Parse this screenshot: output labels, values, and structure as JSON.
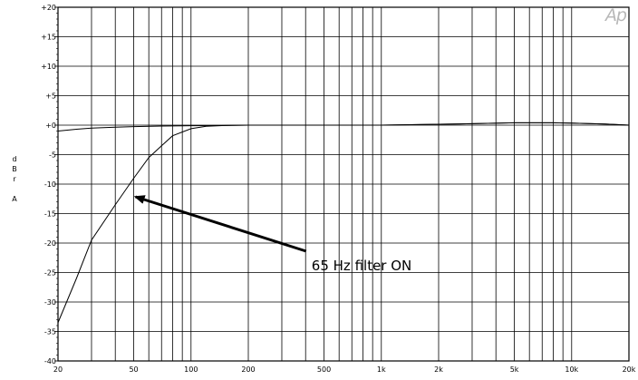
{
  "chart_data": {
    "type": "line",
    "title": "",
    "xlabel": "",
    "ylabel": "dBr A",
    "x_scale": "log",
    "xlim": [
      20,
      20000
    ],
    "ylim": [
      -40,
      20
    ],
    "grid": true,
    "x_ticks": [
      {
        "value": 20,
        "label": "20"
      },
      {
        "value": 50,
        "label": "50"
      },
      {
        "value": 100,
        "label": "100"
      },
      {
        "value": 200,
        "label": "200"
      },
      {
        "value": 500,
        "label": "500"
      },
      {
        "value": 1000,
        "label": "1k"
      },
      {
        "value": 2000,
        "label": "2k"
      },
      {
        "value": 5000,
        "label": "5k"
      },
      {
        "value": 10000,
        "label": "10k"
      },
      {
        "value": 20000,
        "label": "20k"
      }
    ],
    "x_grid": [
      20,
      30,
      40,
      50,
      60,
      70,
      80,
      90,
      100,
      200,
      300,
      400,
      500,
      600,
      700,
      800,
      900,
      1000,
      2000,
      3000,
      4000,
      5000,
      6000,
      7000,
      8000,
      9000,
      10000,
      20000
    ],
    "y_ticks": [
      {
        "value": 20,
        "label": "+20"
      },
      {
        "value": 15,
        "label": "+15"
      },
      {
        "value": 10,
        "label": "+10"
      },
      {
        "value": 5,
        "label": "+5"
      },
      {
        "value": 0,
        "label": "+0"
      },
      {
        "value": -5,
        "label": "-5"
      },
      {
        "value": -10,
        "label": "-10"
      },
      {
        "value": -15,
        "label": "-15"
      },
      {
        "value": -20,
        "label": "-20"
      },
      {
        "value": -25,
        "label": "-25"
      },
      {
        "value": -30,
        "label": "-30"
      },
      {
        "value": -35,
        "label": "-35"
      },
      {
        "value": -40,
        "label": "-40"
      }
    ],
    "series": [
      {
        "points": [
          [
            20,
            -1.0
          ],
          [
            25,
            -0.7
          ],
          [
            30,
            -0.5
          ],
          [
            40,
            -0.35
          ],
          [
            50,
            -0.25
          ],
          [
            70,
            -0.15
          ],
          [
            100,
            -0.1
          ],
          [
            150,
            -0.05
          ],
          [
            200,
            0
          ],
          [
            500,
            0
          ],
          [
            1000,
            0
          ],
          [
            2000,
            0.15
          ],
          [
            3000,
            0.25
          ],
          [
            5000,
            0.4
          ],
          [
            8000,
            0.4
          ],
          [
            10000,
            0.35
          ],
          [
            15000,
            0.2
          ],
          [
            20000,
            0
          ]
        ],
        "color": "#000000"
      },
      {
        "points": [
          [
            20,
            -33.5
          ],
          [
            25,
            -26
          ],
          [
            30,
            -19.5
          ],
          [
            40,
            -13.5
          ],
          [
            50,
            -9
          ],
          [
            60,
            -5.5
          ],
          [
            70,
            -3.5
          ],
          [
            80,
            -1.8
          ],
          [
            100,
            -0.6
          ],
          [
            120,
            -0.2
          ],
          [
            150,
            -0.05
          ],
          [
            200,
            0
          ],
          [
            500,
            0
          ],
          [
            1000,
            0
          ],
          [
            2000,
            0.15
          ],
          [
            3000,
            0.25
          ],
          [
            5000,
            0.4
          ],
          [
            8000,
            0.4
          ],
          [
            10000,
            0.35
          ],
          [
            15000,
            0.2
          ],
          [
            20000,
            0
          ]
        ],
        "color": "#000000"
      }
    ],
    "annotations": [
      {
        "text": "65 Hz filter ON",
        "x": 50,
        "y": -12,
        "text_x": 430,
        "text_y": -22
      }
    ]
  },
  "ylabel_letters": [
    "d",
    "B",
    "r",
    "",
    "A"
  ],
  "logo": "Ap"
}
